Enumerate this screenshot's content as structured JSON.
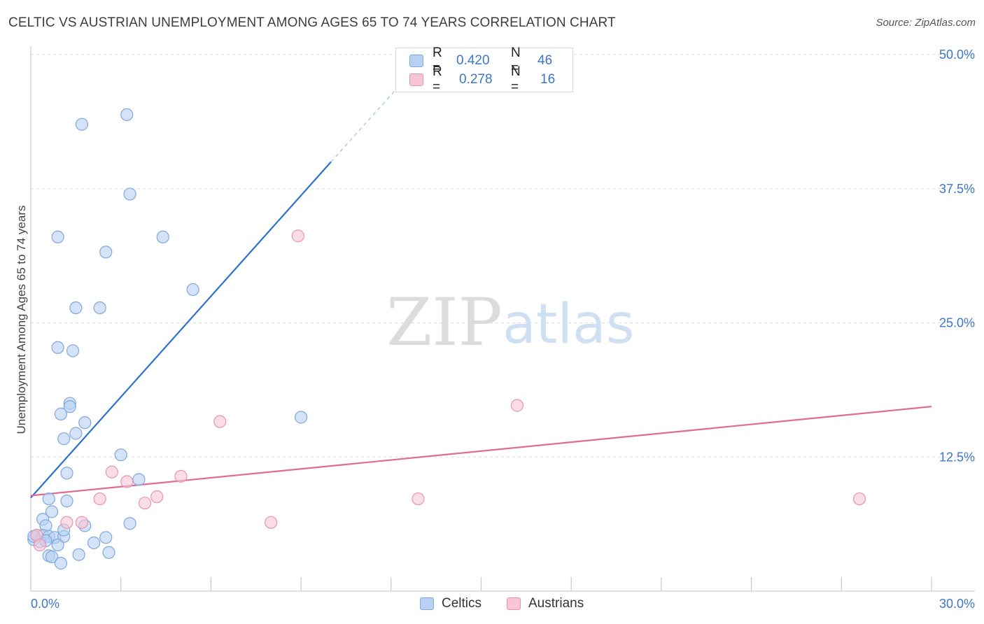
{
  "title": "CELTIC VS AUSTRIAN UNEMPLOYMENT AMONG AGES 65 TO 74 YEARS CORRELATION CHART",
  "source": "Source: ZipAtlas.com",
  "watermark": {
    "zip": "ZIP",
    "atlas": "atlas"
  },
  "colors": {
    "celtics_fill": "#b8d1f3",
    "celtics_stroke": "#7fa8de",
    "celtics_line": "#2e6fd0",
    "austrians_fill": "#f7c6d5",
    "austrians_stroke": "#e894b0",
    "austrians_line": "#e06b96",
    "accent": "#3d75c9"
  },
  "legend": {
    "celtics": {
      "r_label": "R =",
      "r_value": "0.420",
      "n_label": "N =",
      "n_value": "46"
    },
    "austrians": {
      "r_label": "R =",
      "r_value": "0.278",
      "n_label": "N =",
      "n_value": "16"
    }
  },
  "bottom_legend": {
    "celtics": "Celtics",
    "austrians": "Austrians"
  },
  "chart_data": {
    "type": "scatter",
    "title": "CELTIC VS AUSTRIAN UNEMPLOYMENT AMONG AGES 65 TO 74 YEARS CORRELATION CHART",
    "xlabel": "",
    "ylabel": "Unemployment Among Ages 65 to 74 years",
    "xlim": [
      0,
      30
    ],
    "ylim": [
      0,
      50
    ],
    "x_tick_labels": [
      "0.0%",
      "30.0%"
    ],
    "y_ticks": [
      12.5,
      25.0,
      37.5,
      50.0
    ],
    "y_tick_labels": [
      "12.5%",
      "25.0%",
      "37.5%",
      "50.0%"
    ],
    "grid": true,
    "series": [
      {
        "name": "Celtics",
        "points": [
          [
            3.2,
            44.4
          ],
          [
            1.7,
            43.5
          ],
          [
            3.3,
            37.0
          ],
          [
            0.9,
            33.0
          ],
          [
            4.4,
            33.0
          ],
          [
            2.5,
            31.6
          ],
          [
            5.4,
            28.1
          ],
          [
            1.5,
            26.4
          ],
          [
            2.3,
            26.4
          ],
          [
            0.9,
            22.7
          ],
          [
            1.4,
            22.4
          ],
          [
            1.3,
            17.5
          ],
          [
            1.3,
            17.2
          ],
          [
            1.0,
            16.5
          ],
          [
            1.8,
            15.7
          ],
          [
            9.0,
            16.2
          ],
          [
            1.5,
            14.7
          ],
          [
            1.1,
            14.2
          ],
          [
            3.0,
            12.7
          ],
          [
            1.2,
            11.0
          ],
          [
            3.6,
            10.4
          ],
          [
            0.6,
            8.6
          ],
          [
            1.2,
            8.4
          ],
          [
            0.7,
            7.4
          ],
          [
            0.4,
            6.7
          ],
          [
            0.5,
            6.1
          ],
          [
            1.8,
            6.1
          ],
          [
            3.3,
            6.3
          ],
          [
            0.2,
            5.2
          ],
          [
            0.4,
            5.2
          ],
          [
            0.6,
            5.1
          ],
          [
            0.8,
            5.0
          ],
          [
            1.1,
            5.1
          ],
          [
            1.1,
            5.7
          ],
          [
            2.5,
            5.0
          ],
          [
            0.1,
            4.8
          ],
          [
            0.3,
            4.6
          ],
          [
            0.5,
            4.7
          ],
          [
            0.9,
            4.3
          ],
          [
            2.1,
            4.5
          ],
          [
            0.6,
            3.3
          ],
          [
            0.7,
            3.2
          ],
          [
            1.6,
            3.4
          ],
          [
            2.6,
            3.6
          ],
          [
            0.1,
            5.1
          ],
          [
            1.0,
            2.6
          ]
        ],
        "trend": {
          "x": [
            0.0,
            10.0
          ],
          "y": [
            8.7,
            40.0
          ],
          "dashed_extension_to": [
            12.5,
            47.8
          ]
        }
      },
      {
        "name": "Austrians",
        "points": [
          [
            8.9,
            33.1
          ],
          [
            16.2,
            17.3
          ],
          [
            6.3,
            15.8
          ],
          [
            2.7,
            11.1
          ],
          [
            5.0,
            10.7
          ],
          [
            3.2,
            10.2
          ],
          [
            4.2,
            8.8
          ],
          [
            2.3,
            8.6
          ],
          [
            3.8,
            8.2
          ],
          [
            12.9,
            8.6
          ],
          [
            27.6,
            8.6
          ],
          [
            8.0,
            6.4
          ],
          [
            1.2,
            6.4
          ],
          [
            1.7,
            6.4
          ],
          [
            0.2,
            5.2
          ],
          [
            0.3,
            4.3
          ]
        ],
        "trend": {
          "x": [
            0.0,
            30.0
          ],
          "y": [
            8.9,
            17.2
          ]
        }
      }
    ]
  }
}
